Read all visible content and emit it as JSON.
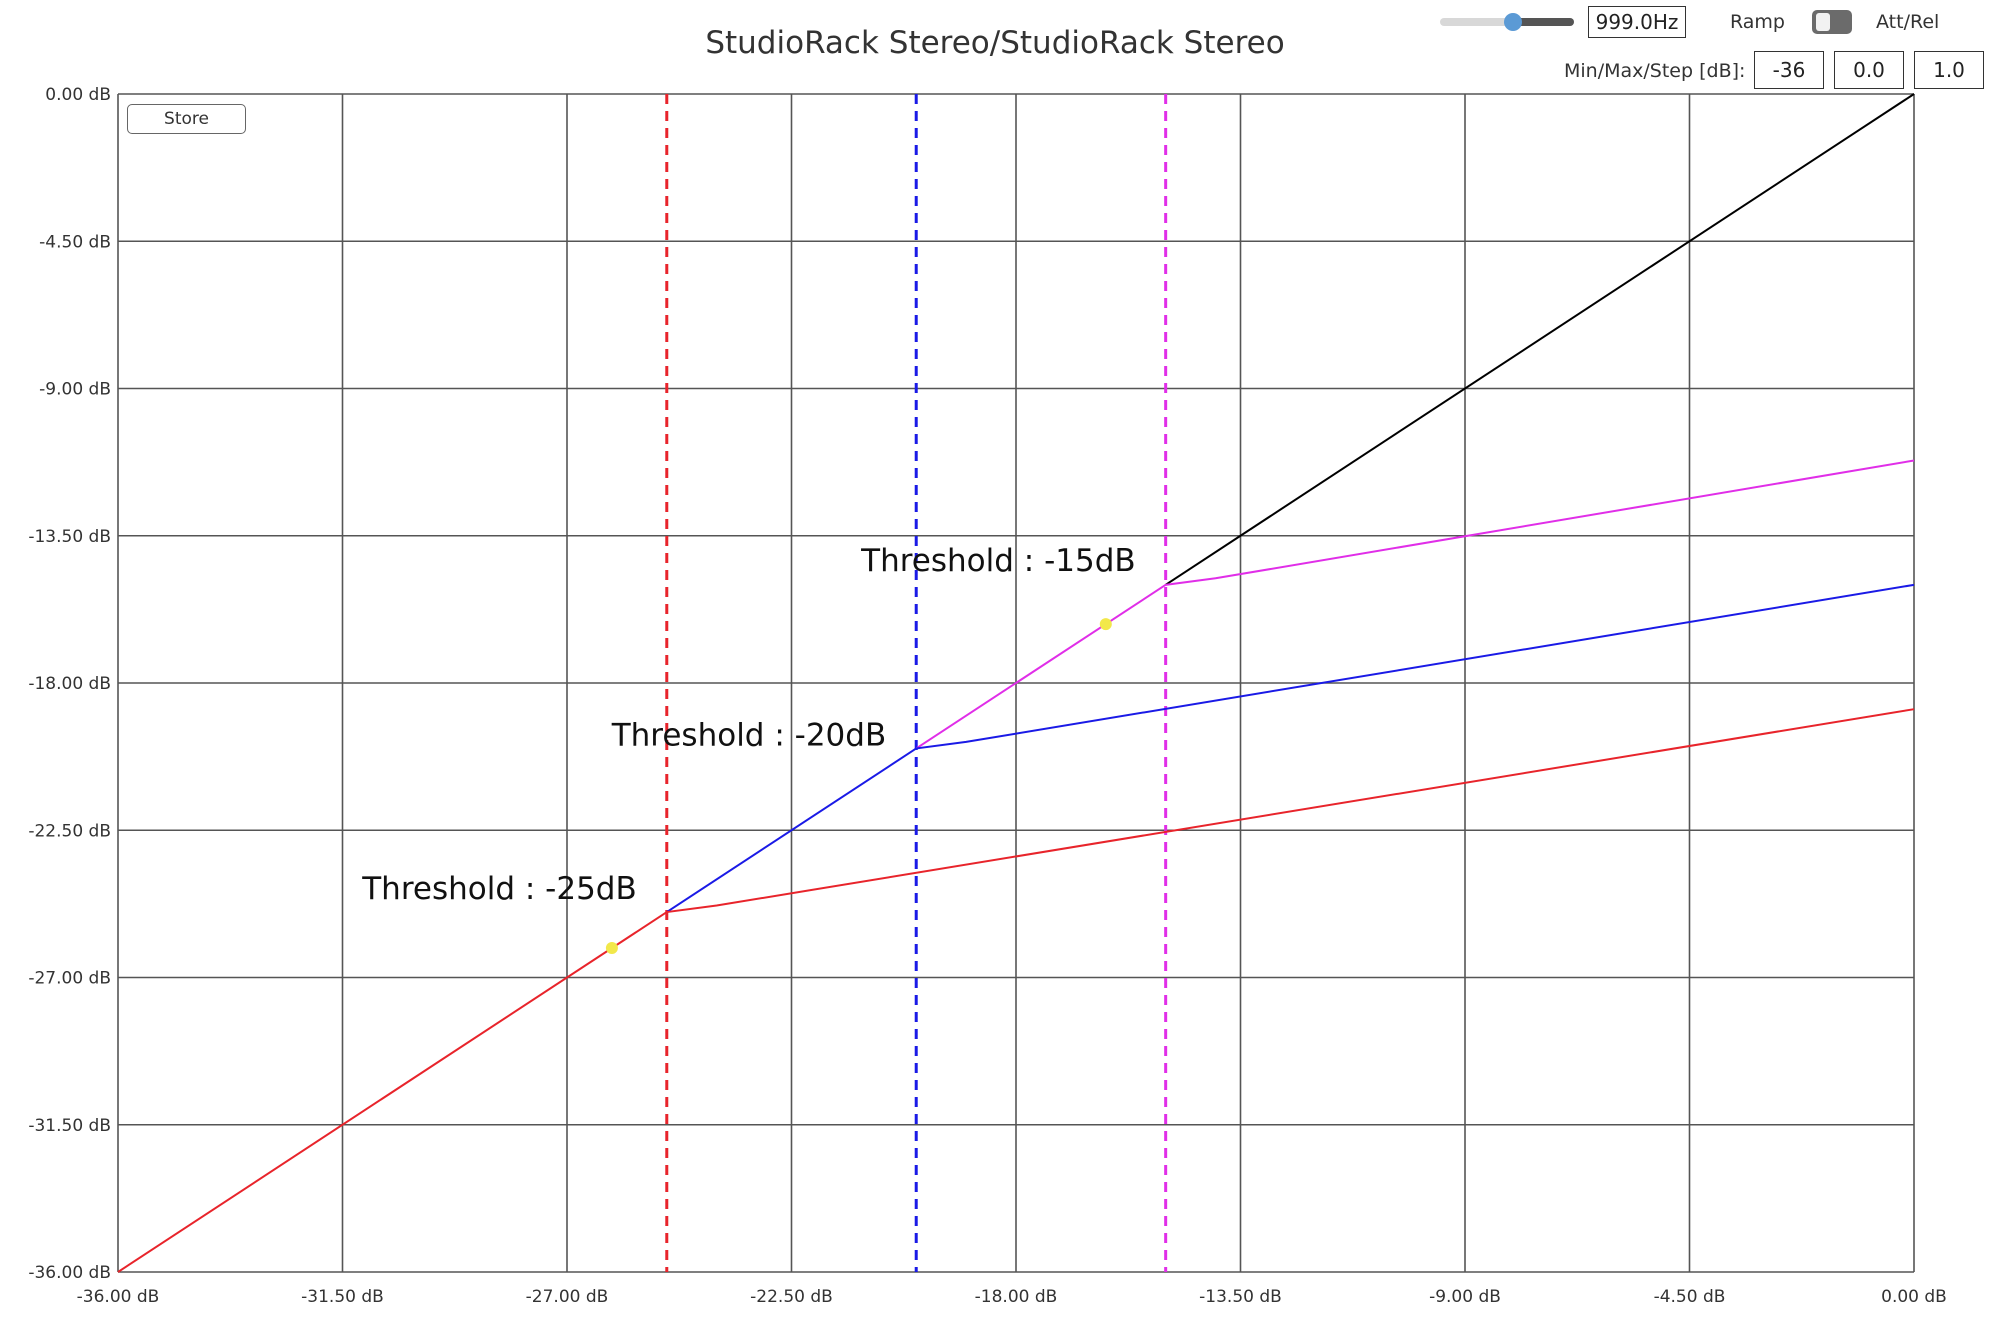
{
  "title": "StudioRack Stereo/StudioRack Stereo",
  "controls": {
    "frequency": "999.0Hz",
    "ramp_label": "Ramp",
    "att_rel_label": "Att/Rel",
    "minmaxstep_label": "Min/Max/Step [dB]:",
    "min": "-36",
    "max": "0.0",
    "step": "1.0",
    "store_label": "Store"
  },
  "colors": {
    "red": "#e8242b",
    "blue": "#1a1ae6",
    "magenta": "#e02ee8",
    "black": "#000000",
    "yellow": "#f2e84a"
  },
  "chart_data": {
    "type": "line",
    "title": "StudioRack Stereo/StudioRack Stereo",
    "xlim": [
      -36,
      0
    ],
    "ylim": [
      -36,
      0
    ],
    "grid": true,
    "x_ticks": [
      -36,
      -31.5,
      -27,
      -22.5,
      -18,
      -13.5,
      -9,
      -4.5,
      0
    ],
    "y_ticks": [
      0,
      -4.5,
      -9,
      -13.5,
      -18,
      -22.5,
      -27,
      -31.5,
      -36
    ],
    "x_tick_labels": [
      "-36.00 dB",
      "-31.50 dB",
      "-27.00 dB",
      "-22.50 dB",
      "-18.00 dB",
      "-13.50 dB",
      "-9.00 dB",
      "-4.50 dB",
      "0.00 dB"
    ],
    "y_tick_labels": [
      "0.00 dB",
      "-4.50 dB",
      "-9.00 dB",
      "-13.50 dB",
      "-18.00 dB",
      "-22.50 dB",
      "-27.00 dB",
      "-31.50 dB",
      "-36.00 dB"
    ],
    "series": [
      {
        "color": "black",
        "x": [
          -15,
          0
        ],
        "y": [
          -15,
          0
        ]
      },
      {
        "color": "magenta",
        "x": [
          -20,
          -15,
          -14,
          0
        ],
        "y": [
          -20,
          -15,
          -14.8,
          -11.2
        ]
      },
      {
        "color": "blue",
        "x": [
          -25,
          -20,
          -19,
          0
        ],
        "y": [
          -25,
          -20,
          -19.8,
          -15
        ]
      },
      {
        "color": "red",
        "x": [
          -36,
          -25,
          -24,
          0
        ],
        "y": [
          -36,
          -25,
          -24.8,
          -18.8
        ]
      }
    ],
    "threshold_lines": [
      {
        "x": -25,
        "color": "red"
      },
      {
        "x": -20,
        "color": "blue"
      },
      {
        "x": -15,
        "color": "magenta"
      }
    ],
    "annotations": [
      {
        "text": "Threshold : -15dB",
        "x": -15,
        "y": -15
      },
      {
        "text": "Threshold : -20dB",
        "x": -20,
        "y": -20
      },
      {
        "text": "Threshold : -25dB",
        "x": -25,
        "y": -25
      }
    ],
    "markers": [
      {
        "x": -16.2,
        "y": -16.2,
        "color": "yellow"
      },
      {
        "x": -26.1,
        "y": -26.1,
        "color": "yellow"
      }
    ]
  }
}
